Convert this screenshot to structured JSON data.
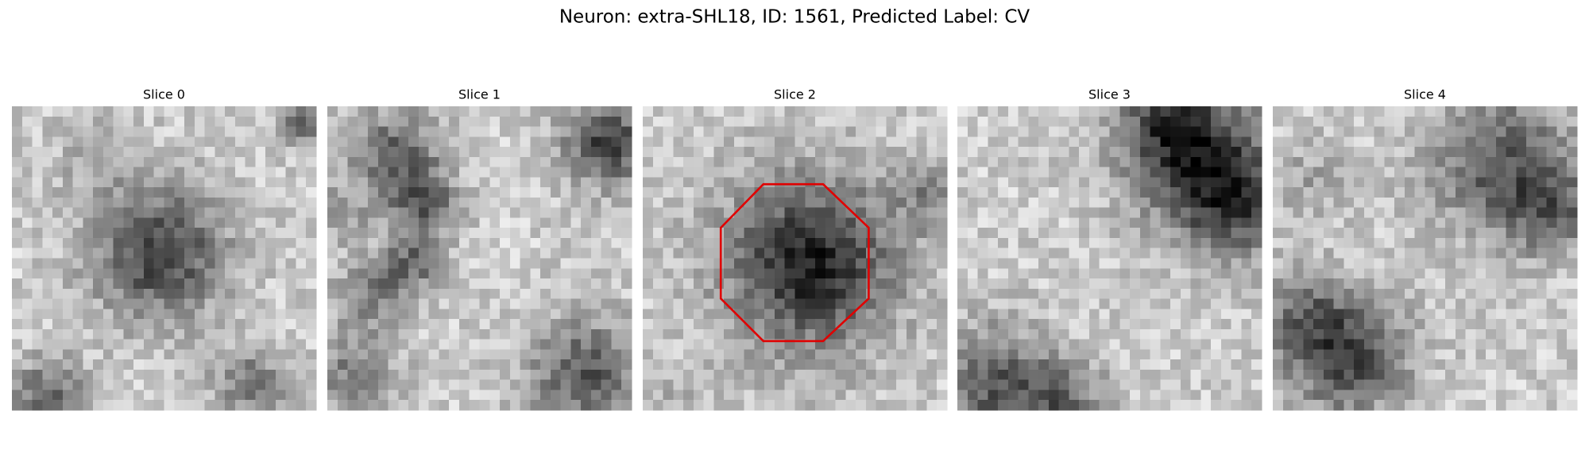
{
  "header": {
    "title": "Neuron: extra-SHL18, ID: 1561, Predicted Label: CV"
  },
  "panels": [
    {
      "title": "Slice 0"
    },
    {
      "title": "Slice 1"
    },
    {
      "title": "Slice 2"
    },
    {
      "title": "Slice 3"
    },
    {
      "title": "Slice 4"
    }
  ]
}
